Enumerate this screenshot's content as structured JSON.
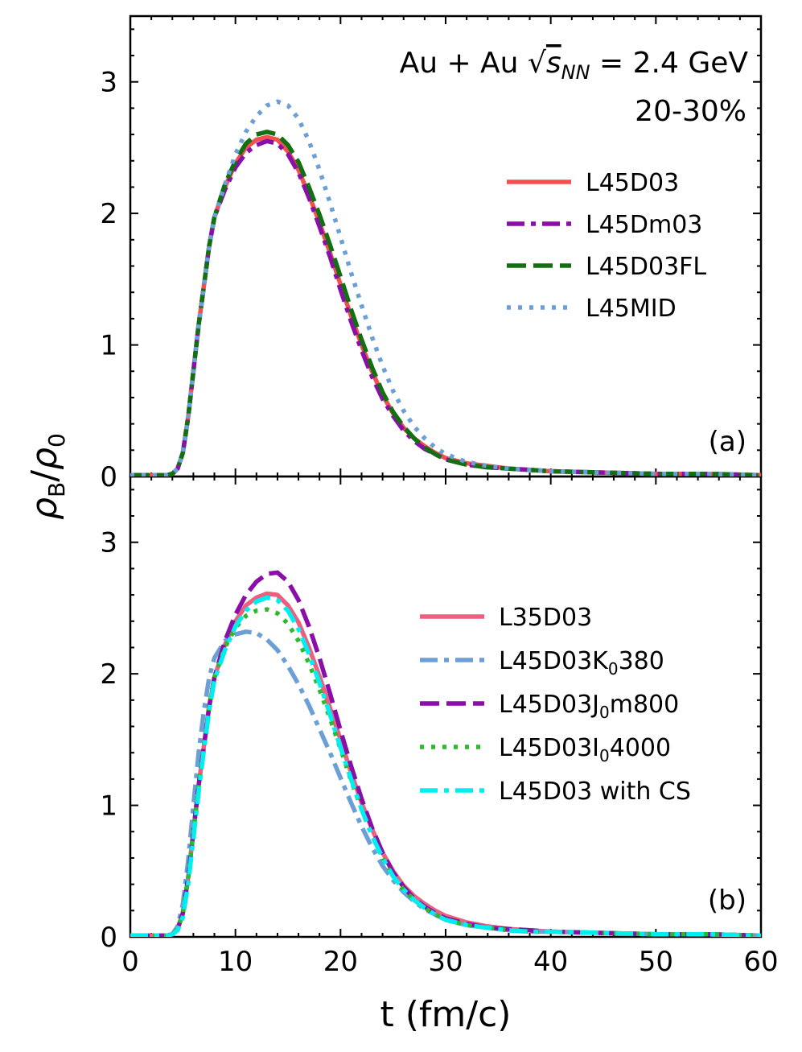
{
  "chart_data": [
    {
      "type": "line",
      "panel": "top",
      "panel_label": "(a)",
      "annotation": {
        "line1_prefix": "Au + Au ",
        "sqrt_symbol": "√",
        "energy_var": "s",
        "energy_sub": "NN",
        "energy_value": " = 2.4 GeV",
        "centrality": "20-30%"
      },
      "xlim": [
        0,
        60
      ],
      "ylim": [
        0,
        3.5
      ],
      "x_ticks": [
        0,
        10,
        20,
        30,
        40,
        50,
        60
      ],
      "y_ticks": [
        0,
        1,
        2,
        3
      ],
      "y_tick_labels": [
        "0",
        "1",
        "2",
        "3"
      ],
      "legend_position": "upper-right",
      "series": [
        {
          "name": "L45D03",
          "color": "#f05050",
          "style": "solid",
          "x": [
            0,
            3.5,
            4,
            4.5,
            5,
            5.5,
            6,
            6.5,
            7,
            7.5,
            8,
            9,
            10,
            11,
            12,
            13,
            14,
            15,
            16,
            17,
            18,
            19,
            20,
            21,
            22,
            23,
            24,
            25,
            26,
            27,
            28,
            29,
            30,
            32,
            34,
            36,
            38,
            40,
            45,
            50,
            55,
            60
          ],
          "y": [
            0.01,
            0.01,
            0.02,
            0.06,
            0.18,
            0.45,
            0.8,
            1.15,
            1.45,
            1.75,
            1.97,
            2.2,
            2.38,
            2.5,
            2.56,
            2.58,
            2.56,
            2.47,
            2.33,
            2.14,
            1.93,
            1.7,
            1.46,
            1.22,
            1.0,
            0.8,
            0.62,
            0.48,
            0.37,
            0.29,
            0.23,
            0.18,
            0.14,
            0.1,
            0.08,
            0.06,
            0.05,
            0.04,
            0.03,
            0.02,
            0.02,
            0.01
          ]
        },
        {
          "name": "L45Dm03",
          "color": "#8a0fa8",
          "style": "dashdot",
          "x": [
            0,
            3.5,
            4,
            4.5,
            5,
            5.5,
            6,
            6.5,
            7,
            7.5,
            8,
            9,
            10,
            11,
            12,
            13,
            14,
            15,
            16,
            17,
            18,
            19,
            20,
            21,
            22,
            23,
            24,
            25,
            26,
            27,
            28,
            29,
            30,
            32,
            34,
            36,
            38,
            40,
            45,
            50,
            55,
            60
          ],
          "y": [
            0.01,
            0.01,
            0.02,
            0.06,
            0.18,
            0.45,
            0.8,
            1.15,
            1.45,
            1.75,
            1.97,
            2.18,
            2.35,
            2.46,
            2.52,
            2.55,
            2.53,
            2.45,
            2.31,
            2.12,
            1.9,
            1.67,
            1.42,
            1.18,
            0.96,
            0.76,
            0.59,
            0.46,
            0.35,
            0.27,
            0.21,
            0.17,
            0.13,
            0.09,
            0.07,
            0.06,
            0.05,
            0.04,
            0.03,
            0.02,
            0.02,
            0.01
          ]
        },
        {
          "name": "L45D03FL",
          "color": "#127012",
          "style": "dashed",
          "x": [
            0,
            3.5,
            4,
            4.5,
            5,
            5.5,
            6,
            6.5,
            7,
            7.5,
            8,
            9,
            10,
            11,
            12,
            13,
            14,
            15,
            16,
            17,
            18,
            19,
            20,
            21,
            22,
            23,
            24,
            25,
            26,
            27,
            28,
            29,
            30,
            32,
            34,
            36,
            38,
            40,
            45,
            50,
            55,
            60
          ],
          "y": [
            0.01,
            0.01,
            0.02,
            0.06,
            0.18,
            0.45,
            0.8,
            1.15,
            1.45,
            1.75,
            1.97,
            2.22,
            2.4,
            2.53,
            2.6,
            2.62,
            2.6,
            2.52,
            2.39,
            2.2,
            1.99,
            1.76,
            1.52,
            1.27,
            1.04,
            0.83,
            0.64,
            0.49,
            0.38,
            0.29,
            0.22,
            0.17,
            0.13,
            0.09,
            0.07,
            0.06,
            0.05,
            0.04,
            0.03,
            0.02,
            0.02,
            0.01
          ]
        },
        {
          "name": "L45MID",
          "color": "#6b9fd6",
          "style": "dotted",
          "x": [
            0,
            3.5,
            4,
            4.5,
            5,
            5.5,
            6,
            6.5,
            7,
            7.5,
            8,
            9,
            10,
            11,
            12,
            13,
            14,
            15,
            16,
            17,
            18,
            19,
            20,
            21,
            22,
            23,
            24,
            25,
            26,
            27,
            28,
            29,
            30,
            32,
            34,
            36,
            38,
            40,
            45,
            50,
            55,
            60
          ],
          "y": [
            0.01,
            0.01,
            0.02,
            0.06,
            0.18,
            0.45,
            0.8,
            1.15,
            1.45,
            1.75,
            1.97,
            2.22,
            2.45,
            2.62,
            2.74,
            2.82,
            2.85,
            2.82,
            2.72,
            2.55,
            2.33,
            2.08,
            1.82,
            1.55,
            1.3,
            1.06,
            0.84,
            0.65,
            0.5,
            0.38,
            0.29,
            0.22,
            0.17,
            0.11,
            0.08,
            0.06,
            0.05,
            0.04,
            0.03,
            0.02,
            0.02,
            0.01
          ]
        }
      ]
    },
    {
      "type": "line",
      "panel": "bottom",
      "panel_label": "(b)",
      "xlabel": "t (fm/c)",
      "ylabel_parts": {
        "rho": "ρ",
        "sub_b": "B",
        "slash": "/",
        "sub_0": "0"
      },
      "xlim": [
        0,
        60
      ],
      "ylim": [
        0,
        3.5
      ],
      "x_ticks": [
        0,
        10,
        20,
        30,
        40,
        50,
        60
      ],
      "x_tick_labels": [
        "0",
        "10",
        "20",
        "30",
        "40",
        "50",
        "60"
      ],
      "y_ticks": [
        0,
        1,
        2,
        3
      ],
      "y_tick_labels": [
        "0",
        "1",
        "2",
        "3"
      ],
      "legend_position": "right",
      "series": [
        {
          "name": "L35D03",
          "label_pre": "L35D03",
          "label_sub": "",
          "label_post": "",
          "color": "#ee5e7e",
          "style": "solid",
          "x": [
            0,
            3.5,
            4,
            4.5,
            5,
            5.5,
            6,
            6.5,
            7,
            7.5,
            8,
            9,
            10,
            11,
            12,
            13,
            14,
            15,
            16,
            17,
            18,
            19,
            20,
            21,
            22,
            23,
            24,
            25,
            26,
            27,
            28,
            29,
            30,
            32,
            34,
            36,
            38,
            40,
            45,
            50,
            55,
            60
          ],
          "y": [
            0.01,
            0.01,
            0.02,
            0.06,
            0.18,
            0.45,
            0.8,
            1.15,
            1.45,
            1.75,
            1.97,
            2.22,
            2.4,
            2.52,
            2.58,
            2.61,
            2.6,
            2.52,
            2.39,
            2.2,
            1.98,
            1.74,
            1.5,
            1.25,
            1.02,
            0.82,
            0.64,
            0.5,
            0.39,
            0.31,
            0.25,
            0.2,
            0.16,
            0.11,
            0.08,
            0.06,
            0.05,
            0.04,
            0.03,
            0.02,
            0.02,
            0.01
          ]
        },
        {
          "name": "L45D03K0380",
          "label_pre": "L45D03K",
          "label_sub": "0",
          "label_post": "380",
          "color": "#6b9fd6",
          "style": "dashdot",
          "x": [
            0,
            3.5,
            4,
            4.5,
            5,
            5.5,
            6,
            6.5,
            7,
            7.5,
            8,
            9,
            10,
            11,
            12,
            13,
            14,
            15,
            16,
            17,
            18,
            19,
            20,
            21,
            22,
            23,
            24,
            25,
            26,
            27,
            28,
            29,
            30,
            32,
            34,
            36,
            38,
            40,
            45,
            50,
            55,
            60
          ],
          "y": [
            0.01,
            0.01,
            0.02,
            0.08,
            0.25,
            0.58,
            1.0,
            1.4,
            1.72,
            1.97,
            2.12,
            2.25,
            2.3,
            2.32,
            2.31,
            2.26,
            2.18,
            2.06,
            1.92,
            1.76,
            1.58,
            1.4,
            1.21,
            1.02,
            0.84,
            0.68,
            0.54,
            0.43,
            0.34,
            0.27,
            0.21,
            0.17,
            0.13,
            0.09,
            0.07,
            0.05,
            0.04,
            0.04,
            0.03,
            0.02,
            0.02,
            0.01
          ]
        },
        {
          "name": "L45D03J0m800",
          "label_pre": "L45D03J",
          "label_sub": "0",
          "label_post": "m800",
          "color": "#8a0fa8",
          "style": "dashed",
          "x": [
            0,
            3.5,
            4,
            4.5,
            5,
            5.5,
            6,
            6.5,
            7,
            7.5,
            8,
            9,
            10,
            11,
            12,
            13,
            14,
            15,
            16,
            17,
            18,
            19,
            20,
            21,
            22,
            23,
            24,
            25,
            26,
            27,
            28,
            29,
            30,
            32,
            34,
            36,
            38,
            40,
            45,
            50,
            55,
            60
          ],
          "y": [
            0.01,
            0.01,
            0.02,
            0.06,
            0.18,
            0.45,
            0.8,
            1.15,
            1.45,
            1.75,
            1.97,
            2.25,
            2.45,
            2.6,
            2.7,
            2.76,
            2.77,
            2.7,
            2.56,
            2.36,
            2.12,
            1.85,
            1.57,
            1.3,
            1.05,
            0.83,
            0.64,
            0.49,
            0.38,
            0.29,
            0.23,
            0.18,
            0.14,
            0.1,
            0.07,
            0.06,
            0.05,
            0.04,
            0.03,
            0.02,
            0.02,
            0.01
          ]
        },
        {
          "name": "L45D03I04000",
          "label_pre": "L45D03I",
          "label_sub": "0",
          "label_post": "4000",
          "color": "#2eb82e",
          "style": "dotted",
          "x": [
            0,
            3.5,
            4,
            4.5,
            5,
            5.5,
            6,
            6.5,
            7,
            7.5,
            8,
            9,
            10,
            11,
            12,
            13,
            14,
            15,
            16,
            17,
            18,
            19,
            20,
            21,
            22,
            23,
            24,
            25,
            26,
            27,
            28,
            29,
            30,
            32,
            34,
            36,
            38,
            40,
            45,
            50,
            55,
            60
          ],
          "y": [
            0.01,
            0.01,
            0.02,
            0.06,
            0.18,
            0.45,
            0.8,
            1.15,
            1.45,
            1.75,
            1.97,
            2.2,
            2.35,
            2.44,
            2.48,
            2.49,
            2.46,
            2.38,
            2.25,
            2.08,
            1.88,
            1.66,
            1.43,
            1.19,
            0.97,
            0.77,
            0.6,
            0.46,
            0.36,
            0.28,
            0.22,
            0.17,
            0.13,
            0.09,
            0.07,
            0.05,
            0.04,
            0.04,
            0.03,
            0.02,
            0.02,
            0.01
          ]
        },
        {
          "name": "L45D03 with CS",
          "label_pre": "L45D03 with CS",
          "label_sub": "",
          "label_post": "",
          "color": "#00eeee",
          "style": "dashdot",
          "x": [
            0,
            3.5,
            4,
            4.5,
            5,
            5.5,
            6,
            6.5,
            7,
            7.5,
            8,
            9,
            10,
            11,
            12,
            13,
            14,
            15,
            16,
            17,
            18,
            19,
            20,
            21,
            22,
            23,
            24,
            25,
            26,
            27,
            28,
            29,
            30,
            32,
            34,
            36,
            38,
            40,
            45,
            50,
            55,
            60
          ],
          "y": [
            0.01,
            0.01,
            0.02,
            0.05,
            0.15,
            0.4,
            0.75,
            1.1,
            1.42,
            1.72,
            1.95,
            2.18,
            2.36,
            2.48,
            2.55,
            2.58,
            2.56,
            2.48,
            2.34,
            2.15,
            1.93,
            1.69,
            1.44,
            1.2,
            0.97,
            0.77,
            0.6,
            0.46,
            0.36,
            0.28,
            0.22,
            0.17,
            0.13,
            0.09,
            0.07,
            0.05,
            0.04,
            0.04,
            0.03,
            0.02,
            0.02,
            0.01
          ]
        }
      ]
    }
  ]
}
